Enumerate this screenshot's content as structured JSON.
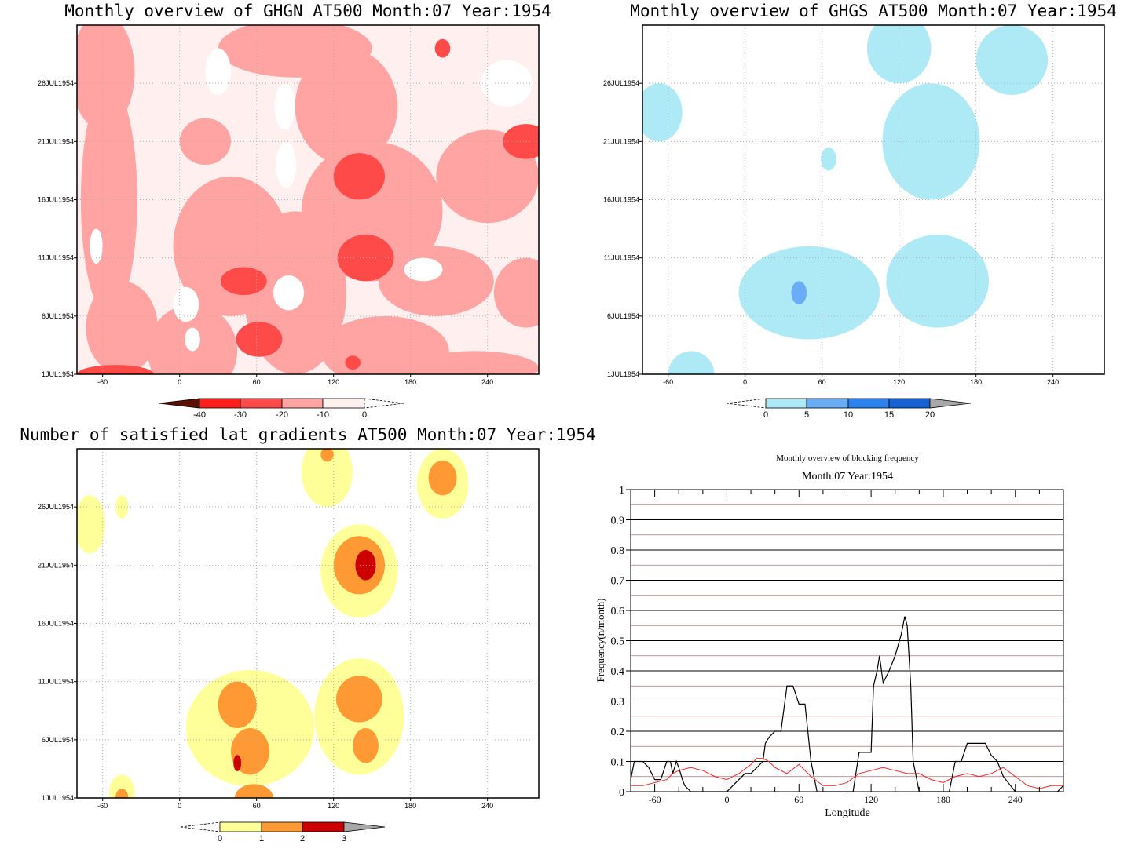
{
  "colors": {
    "ghgn_levels": [
      "#5e0f04",
      "#ff1d1d",
      "#ff4a4a",
      "#ffa3a3",
      "#ffefef",
      "#ffffff"
    ],
    "ghgs_levels": [
      "#ffffff",
      "#aeeaf5",
      "#69adf6",
      "#2d83ed",
      "#1662d4",
      "#a8a8a8"
    ],
    "grad_levels": [
      "#ffffff",
      "#ffff99",
      "#ff9933",
      "#cc0000",
      "#a8a8a8"
    ],
    "blocking_black": "#000000",
    "blocking_red": "#ff2020",
    "grid_dotted": "#b0b0b0"
  },
  "panels": {
    "ghgn": {
      "title": "Monthly overview of GHGN AT500 Month:07 Year:1954",
      "xticks": [
        "-60",
        "0",
        "60",
        "120",
        "180",
        "240"
      ],
      "yticks": [
        "1JUL1954",
        "6JUL1954",
        "11JUL1954",
        "16JUL1954",
        "21JUL1954",
        "26JUL1954"
      ],
      "colorbar": [
        "-40",
        "-30",
        "-20",
        "-10",
        "0"
      ]
    },
    "ghgs": {
      "title": "Monthly overview of GHGS AT500 Month:07 Year:1954",
      "xticks": [
        "-60",
        "0",
        "60",
        "120",
        "180",
        "240"
      ],
      "yticks": [
        "1JUL1954",
        "6JUL1954",
        "11JUL1954",
        "16JUL1954",
        "21JUL1954",
        "26JUL1954"
      ],
      "colorbar": [
        "0",
        "5",
        "10",
        "15",
        "20"
      ]
    },
    "gradients": {
      "title": "Number of satisfied lat gradients AT500 Month:07 Year:1954",
      "xticks": [
        "-60",
        "0",
        "60",
        "120",
        "180",
        "240"
      ],
      "yticks": [
        "1JUL1954",
        "6JUL1954",
        "11JUL1954",
        "16JUL1954",
        "21JUL1954",
        "26JUL1954"
      ],
      "colorbar": [
        "0",
        "1",
        "2",
        "3"
      ]
    },
    "blocking": {
      "title": "Monthly overview of blocking frequency",
      "subtitle": "Month:07 Year:1954",
      "xlabel": "Longitude",
      "ylabel": "Frequency(n/month)",
      "xticks": [
        "-60",
        "0",
        "60",
        "120",
        "180",
        "240"
      ],
      "yticks": [
        "0",
        "0.1",
        "0.2",
        "0.3",
        "0.4",
        "0.5",
        "0.6",
        "0.7",
        "0.8",
        "0.9",
        "1"
      ]
    }
  },
  "chart_data": [
    {
      "type": "heatmap",
      "title": "Monthly overview of GHGN AT500 Month:07 Year:1954",
      "xlim": [
        -80,
        280
      ],
      "ylim": [
        "1JUL1954",
        "31JUL1954"
      ],
      "x_ticks": [
        -60,
        0,
        60,
        120,
        180,
        240
      ],
      "y_ticks": [
        "1JUL1954",
        "6JUL1954",
        "11JUL1954",
        "16JUL1954",
        "21JUL1954",
        "26JUL1954"
      ],
      "levels": [
        -40,
        -30,
        -20,
        -10,
        0
      ],
      "grid": true,
      "blobs": [
        {
          "x": 140,
          "day": 18,
          "rx": 20,
          "rdays": 2,
          "level": -20
        },
        {
          "x": 145,
          "day": 11,
          "rx": 22,
          "rdays": 2,
          "level": -20
        },
        {
          "x": 50,
          "day": 9,
          "rx": 18,
          "rdays": 1.2,
          "level": -20
        },
        {
          "x": 62,
          "day": 4,
          "rx": 18,
          "rdays": 1.5,
          "level": -20
        },
        {
          "x": 270,
          "day": 21,
          "rx": 18,
          "rdays": 1.5,
          "level": -20
        },
        {
          "x": 205,
          "day": 29,
          "rx": 6,
          "rdays": 0.8,
          "level": -20
        },
        {
          "x": -50,
          "day": 1,
          "rx": 30,
          "rdays": 0.8,
          "level": -20
        },
        {
          "x": 135,
          "day": 2,
          "rx": 6,
          "rdays": 0.6,
          "level": -20
        }
      ]
    },
    {
      "type": "heatmap",
      "title": "Monthly overview of GHGS AT500 Month:07 Year:1954",
      "xlim": [
        -80,
        280
      ],
      "ylim": [
        "1JUL1954",
        "31JUL1954"
      ],
      "x_ticks": [
        -60,
        0,
        60,
        120,
        180,
        240
      ],
      "y_ticks": [
        "1JUL1954",
        "6JUL1954",
        "11JUL1954",
        "16JUL1954",
        "21JUL1954",
        "26JUL1954"
      ],
      "levels": [
        0,
        5,
        10,
        15,
        20
      ],
      "grid": true,
      "blobs": [
        {
          "x": 50,
          "day": 8,
          "rx": 55,
          "rdays": 4,
          "level": 0
        },
        {
          "x": 42,
          "day": 8,
          "rx": 6,
          "rdays": 1,
          "level": 5
        },
        {
          "x": 150,
          "day": 9,
          "rx": 40,
          "rdays": 4,
          "level": 0
        },
        {
          "x": 145,
          "day": 21,
          "rx": 38,
          "rdays": 5,
          "level": 0
        },
        {
          "x": 208,
          "day": 28,
          "rx": 28,
          "rdays": 3,
          "level": 0
        },
        {
          "x": 120,
          "day": 29,
          "rx": 25,
          "rdays": 3,
          "level": 0
        },
        {
          "x": -67,
          "day": 23.5,
          "rx": 18,
          "rdays": 2.5,
          "level": 0
        },
        {
          "x": 65,
          "day": 19.5,
          "rx": 6,
          "rdays": 1,
          "level": 0
        },
        {
          "x": -42,
          "day": 1,
          "rx": 18,
          "rdays": 2,
          "level": 0
        }
      ]
    },
    {
      "type": "heatmap",
      "title": "Number of satisfied lat gradients AT500 Month:07 Year:1954",
      "xlim": [
        -80,
        280
      ],
      "ylim": [
        "1JUL1954",
        "31JUL1954"
      ],
      "x_ticks": [
        -60,
        0,
        60,
        120,
        180,
        240
      ],
      "y_ticks": [
        "1JUL1954",
        "6JUL1954",
        "11JUL1954",
        "16JUL1954",
        "21JUL1954",
        "26JUL1954"
      ],
      "levels": [
        0,
        1,
        2,
        3
      ],
      "grid": true,
      "blobs": [
        {
          "x": 140,
          "day": 20.5,
          "rx": 30,
          "rdays": 4,
          "level": 1
        },
        {
          "x": 140,
          "day": 21,
          "rx": 20,
          "rdays": 2.5,
          "level": 2
        },
        {
          "x": 145,
          "day": 21,
          "rx": 8,
          "rdays": 1.3,
          "level": 3
        },
        {
          "x": 140,
          "day": 8,
          "rx": 35,
          "rdays": 5,
          "level": 1
        },
        {
          "x": 140,
          "day": 9.5,
          "rx": 18,
          "rdays": 2,
          "level": 2
        },
        {
          "x": 145,
          "day": 5.5,
          "rx": 10,
          "rdays": 1.5,
          "level": 2
        },
        {
          "x": 55,
          "day": 7,
          "rx": 50,
          "rdays": 5,
          "level": 1
        },
        {
          "x": 45,
          "day": 9,
          "rx": 15,
          "rdays": 2,
          "level": 2
        },
        {
          "x": 55,
          "day": 5,
          "rx": 15,
          "rdays": 2,
          "level": 2
        },
        {
          "x": 45,
          "day": 4,
          "rx": 3,
          "rdays": 0.7,
          "level": 3
        },
        {
          "x": 58,
          "day": 1,
          "rx": 15,
          "rdays": 1.2,
          "level": 2
        },
        {
          "x": 205,
          "day": 28,
          "rx": 20,
          "rdays": 3,
          "level": 1
        },
        {
          "x": 205,
          "day": 28.5,
          "rx": 11,
          "rdays": 1.5,
          "level": 2
        },
        {
          "x": 115,
          "day": 29,
          "rx": 20,
          "rdays": 3,
          "level": 1
        },
        {
          "x": 115,
          "day": 30.5,
          "rx": 5,
          "rdays": 0.6,
          "level": 2
        },
        {
          "x": -70,
          "day": 24.5,
          "rx": 12,
          "rdays": 2.5,
          "level": 1
        },
        {
          "x": -45,
          "day": 26,
          "rx": 5,
          "rdays": 1,
          "level": 1
        },
        {
          "x": -45,
          "day": 1.5,
          "rx": 10,
          "rdays": 1.5,
          "level": 1
        },
        {
          "x": -45,
          "day": 1,
          "rx": 5,
          "rdays": 0.8,
          "level": 2
        }
      ]
    },
    {
      "type": "line",
      "title": "Monthly overview of blocking frequency",
      "subtitle": "Month:07 Year:1954",
      "xlabel": "Longitude",
      "ylabel": "Frequency(n/month)",
      "xlim": [
        -80,
        280
      ],
      "ylim": [
        0,
        1
      ],
      "x_ticks": [
        -60,
        0,
        60,
        120,
        180,
        240
      ],
      "y_ticks": [
        0,
        0.1,
        0.2,
        0.3,
        0.4,
        0.5,
        0.6,
        0.7,
        0.8,
        0.9,
        1
      ],
      "grid": true,
      "series": [
        {
          "color": "#000000",
          "x": [
            -80,
            -77,
            -70,
            -65,
            -60,
            -55,
            -50,
            -47,
            -45,
            -42,
            -40,
            -37,
            -35,
            -30,
            -20,
            -10,
            0,
            5,
            10,
            15,
            20,
            25,
            30,
            32,
            35,
            40,
            45,
            50,
            55,
            60,
            63,
            65,
            70,
            75,
            80,
            85,
            90,
            95,
            100,
            105,
            110,
            115,
            117,
            120,
            122,
            125,
            127,
            130,
            135,
            140,
            145,
            148,
            150,
            153,
            155,
            160,
            165,
            170,
            175,
            180,
            185,
            190,
            195,
            200,
            205,
            210,
            215,
            220,
            225,
            230,
            240,
            250,
            260,
            270,
            275,
            280
          ],
          "y": [
            0.04,
            0.1,
            0.1,
            0.08,
            0.04,
            0.04,
            0.1,
            0.1,
            0.06,
            0.1,
            0.08,
            0.04,
            0.02,
            0.0,
            0.0,
            0.0,
            0.0,
            0.02,
            0.04,
            0.06,
            0.06,
            0.08,
            0.1,
            0.16,
            0.18,
            0.2,
            0.2,
            0.35,
            0.35,
            0.29,
            0.29,
            0.29,
            0.1,
            0.0,
            0.0,
            0.0,
            0.0,
            0.0,
            0.0,
            0.0,
            0.13,
            0.13,
            0.13,
            0.13,
            0.35,
            0.4,
            0.45,
            0.36,
            0.4,
            0.45,
            0.52,
            0.58,
            0.55,
            0.35,
            0.1,
            0.0,
            0.0,
            0.0,
            0.0,
            0.0,
            0.0,
            0.1,
            0.1,
            0.16,
            0.16,
            0.16,
            0.16,
            0.12,
            0.1,
            0.05,
            0.0,
            0.0,
            0.0,
            0.0,
            0.0,
            0.02
          ]
        },
        {
          "color": "#ff2020",
          "x": [
            -80,
            -70,
            -60,
            -50,
            -45,
            -40,
            -30,
            -20,
            -10,
            0,
            10,
            20,
            25,
            30,
            35,
            40,
            50,
            60,
            70,
            80,
            90,
            100,
            110,
            120,
            130,
            140,
            150,
            160,
            170,
            180,
            190,
            200,
            210,
            220,
            230,
            240,
            250,
            260,
            270,
            280
          ],
          "y": [
            0.02,
            0.02,
            0.03,
            0.04,
            0.06,
            0.07,
            0.08,
            0.07,
            0.05,
            0.04,
            0.06,
            0.09,
            0.11,
            0.11,
            0.1,
            0.08,
            0.06,
            0.09,
            0.05,
            0.02,
            0.02,
            0.03,
            0.06,
            0.07,
            0.08,
            0.07,
            0.06,
            0.06,
            0.04,
            0.03,
            0.05,
            0.06,
            0.05,
            0.06,
            0.08,
            0.05,
            0.02,
            0.01,
            0.02,
            0.02
          ]
        }
      ]
    }
  ]
}
